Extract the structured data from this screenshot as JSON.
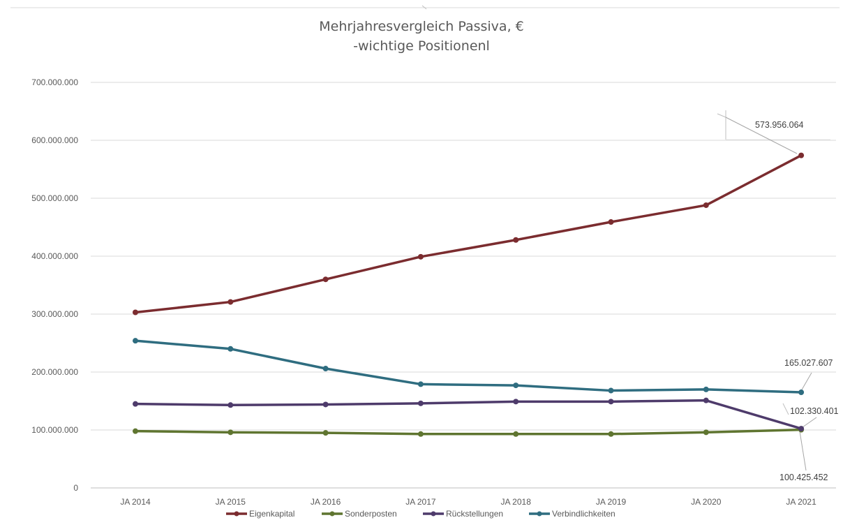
{
  "chart_data": {
    "type": "line",
    "title": "Mehrjahresvergleich Passiva, €",
    "subtitle": "-wichtige Positionenl",
    "xlabel": "",
    "ylabel": "",
    "categories": [
      "JA 2014",
      "JA 2015",
      "JA 2016",
      "JA 2017",
      "JA 2018",
      "JA 2019",
      "JA 2020",
      "JA 2021"
    ],
    "ylim": [
      0,
      700000000
    ],
    "yticks": [
      0,
      100000000,
      200000000,
      300000000,
      400000000,
      500000000,
      600000000,
      700000000
    ],
    "ytick_labels": [
      "0",
      "100.000.000",
      "200.000.000",
      "300.000.000",
      "400.000.000",
      "500.000.000",
      "600.000.000",
      "700.000.000"
    ],
    "grid": true,
    "legend_position": "bottom",
    "series": [
      {
        "name": "Eigenkapital",
        "color": "#7b2c2f",
        "values": [
          303000000,
          321000000,
          360000000,
          399000000,
          428000000,
          459000000,
          488000000,
          573956064
        ]
      },
      {
        "name": "Sonderposten",
        "color": "#5f7530",
        "values": [
          98000000,
          96000000,
          95000000,
          93000000,
          93000000,
          93000000,
          96000000,
          100425452
        ]
      },
      {
        "name": "Rückstellungen",
        "color": "#4e3b6b",
        "values": [
          145000000,
          143000000,
          144000000,
          146000000,
          149000000,
          149000000,
          151000000,
          102330401
        ]
      },
      {
        "name": "Verbindlichkeiten",
        "color": "#2f6d80",
        "values": [
          254000000,
          240000000,
          206000000,
          179000000,
          177000000,
          168000000,
          170000000,
          165027607
        ]
      }
    ],
    "annotations": [
      {
        "series": "Eigenkapital",
        "category": "JA 2021",
        "text": "573.956.064"
      },
      {
        "series": "Verbindlichkeiten",
        "category": "JA 2021",
        "text": "165.027.607"
      },
      {
        "series": "Rückstellungen",
        "category": "JA 2021",
        "text": "102.330.401"
      },
      {
        "series": "Sonderposten",
        "category": "JA 2021",
        "text": "100.425.452"
      }
    ]
  }
}
